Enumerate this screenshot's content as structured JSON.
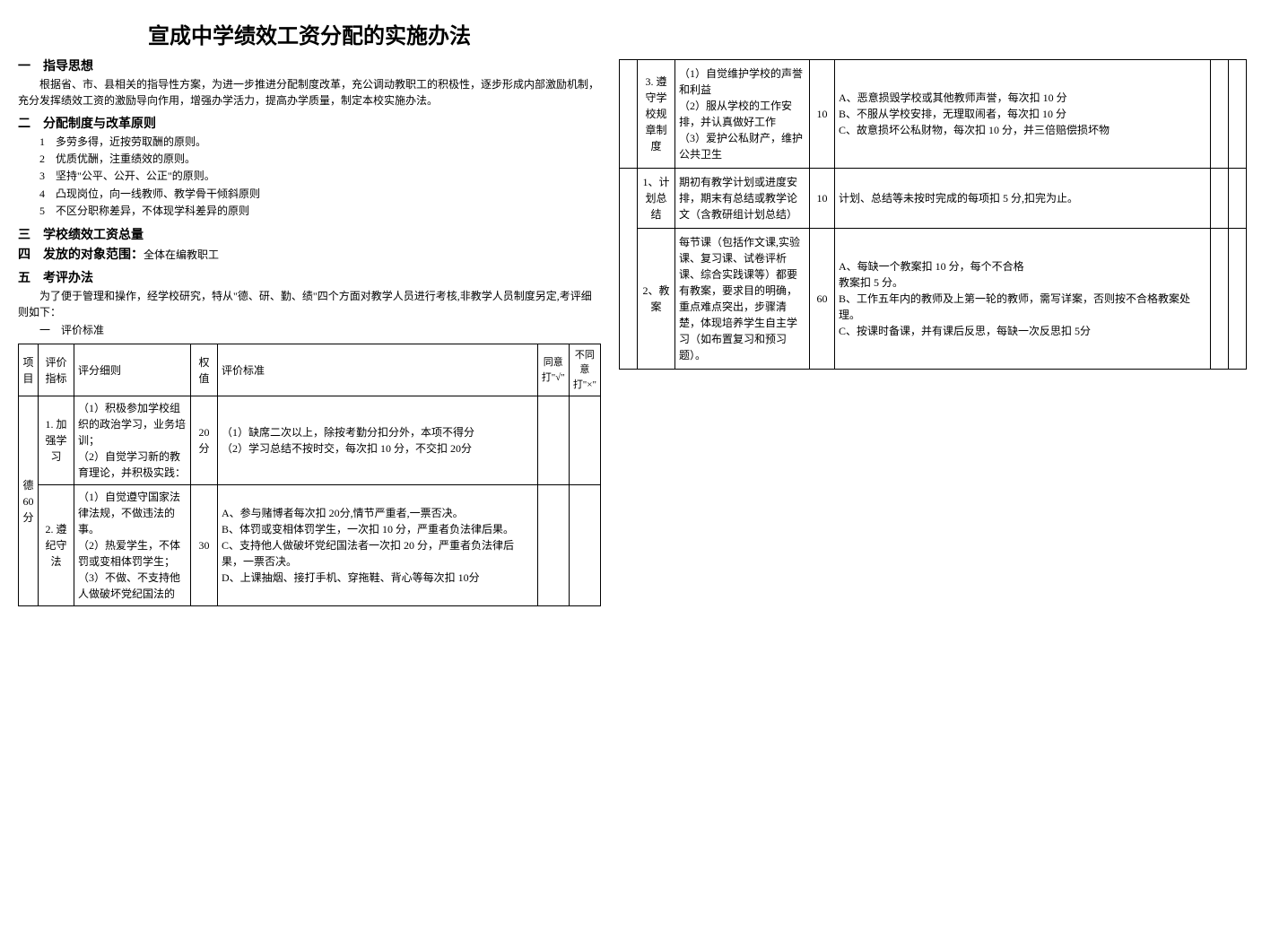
{
  "title": "宣成中学绩效工资分配的实施办法",
  "sections": {
    "s1": {
      "heading": "一　指导思想",
      "body": "根据省、市、县相关的指导性方案，为进一步推进分配制度改革，充公调动教职工的积极性，逐步形成内部激励机制，充分发挥绩效工资的激励导向作用，增强办学活力，提高办学质量，制定本校实施办法。"
    },
    "s2": {
      "heading": "二　分配制度与改革原则",
      "items": [
        "1　多劳多得，近按劳取酬的原则。",
        "2　优质优酬，注重绩效的原则。",
        "3　坚持\"公平、公开、公正\"的原则。",
        "4　凸现岗位，向一线教师、教学骨干倾斜原则",
        "5　不区分职称差异，不体现学科差异的原则"
      ]
    },
    "s3": {
      "heading": "三　学校绩效工资总量"
    },
    "s4": {
      "heading": "四　发放的对象范围：",
      "inline": "全体在编教职工"
    },
    "s5": {
      "heading": "五　考评办法",
      "body": "为了便于管理和操作，经学校研究，特从\"德、研、勤、绩\"四个方面对教学人员进行考核,非教学人员制度另定,考评细则如下：",
      "sub": "一　评价标准"
    }
  },
  "table1": {
    "headers": {
      "project": "项目",
      "indicator": "评价指标",
      "detail": "评分细则",
      "weight": "权值",
      "criteria": "评价标准",
      "agree": "同意打\"√\"",
      "disagree": "不同意打\"×\""
    },
    "category": "德60分",
    "rows": [
      {
        "indicator": "1. 加强学习",
        "detail": "（1）积极参加学校组织的政治学习，业务培训；\n（2）自觉学习新的教育理论，并积极实践：",
        "weight": "20分",
        "criteria": "（1）缺席二次以上，除按考勤分扣分外，本项不得分\n（2）学习总结不按时交，每次扣 10 分，不交扣 20分"
      },
      {
        "indicator": "2. 遵纪守法",
        "detail": "（1）自觉遵守国家法律法规，不做违法的事。\n（2）热爱学生，不体罚或变相体罚学生；\n（3）不做、不支持他人做破坏党纪国法的",
        "weight": "30",
        "criteria": "A、参与赌博者每次扣 20分,情节严重者,一票否决。\nB、体罚或变相体罚学生，一次扣 10 分，严重者负法律后果。\nC、支持他人做破坏党纪国法者一次扣 20 分，严重者负法律后果，一票否决。\nD、上课抽烟、接打手机、穿拖鞋、背心等每次扣 10分"
      }
    ]
  },
  "table2": {
    "rows": [
      {
        "indicator": "3. 遵守学校规章制度",
        "detail": "（1）自觉维护学校的声誉和利益\n（2）服从学校的工作安排，并认真做好工作\n（3）爱护公私财产，维护公共卫生",
        "weight": "10",
        "criteria": "A、恶意损毁学校或其他教师声誉，每次扣 10 分\nB、不服从学校安排，无理取闹者，每次扣 10 分\nC、故意损坏公私财物，每次扣 10 分，并三倍赔偿损坏物"
      },
      {
        "indicator": "1、计划总结",
        "detail": "期初有教学计划或进度安排，期末有总结或教学论文（含教研组计划总结）",
        "weight": "10",
        "criteria": "计划、总结等未按时完成的每项扣 5 分,扣完为止。"
      },
      {
        "indicator": "2、教案",
        "detail": "每节课（包括作文课,实验课、复习课、试卷评析课、综合实践课等）都要有教案，要求目的明确，重点难点突出，步骤清楚，体现培养学生自主学习（如布置复习和预习题）。",
        "weight": "60",
        "criteria": "A、每缺一个教案扣 10 分，每个不合格\n教案扣 5 分。\nB、工作五年内的教师及上第一轮的教师，需写详案，否则按不合格教案处理。\nC、按课时备课，并有课后反思，每缺一次反思扣 5分"
      }
    ]
  }
}
